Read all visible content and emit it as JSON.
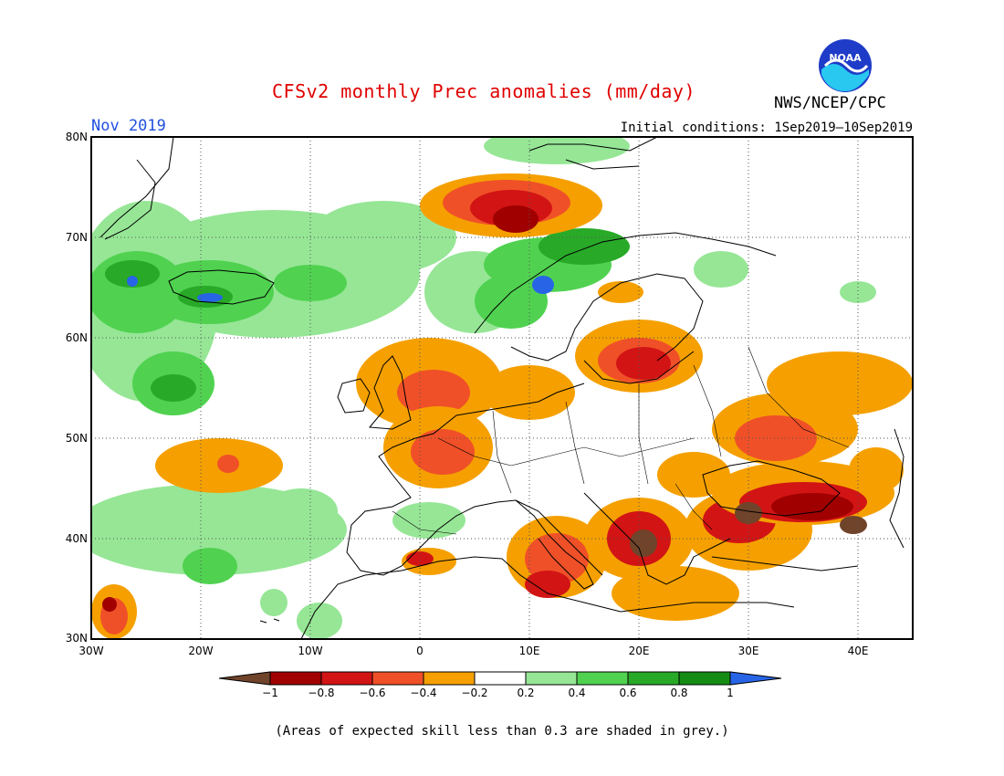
{
  "header": {
    "title": "CFSv2 monthly Prec anomalies (mm/day)",
    "month": "Nov 2019",
    "initial_conditions": "Initial conditions: 1Sep2019—10Sep2019",
    "agency": "NWS/NCEP/CPC",
    "logo_text": "NOAA"
  },
  "axes": {
    "lat_labels": [
      "80N",
      "70N",
      "60N",
      "50N",
      "40N",
      "30N"
    ],
    "lon_labels": [
      "30W",
      "20W",
      "10W",
      "0",
      "10E",
      "20E",
      "30E",
      "40E"
    ]
  },
  "colorbar": {
    "labels": [
      "−1",
      "−0.8",
      "−0.6",
      "−0.4",
      "−0.2",
      "0.2",
      "0.4",
      "0.6",
      "0.8",
      "1"
    ],
    "colors": [
      "#70442a",
      "#a00000",
      "#d21414",
      "#f05028",
      "#f5a000",
      "#ffffff",
      "#96e696",
      "#50d250",
      "#28aa28",
      "#148c14",
      "#2864e6"
    ]
  },
  "footnote": "(Areas of expected skill less than 0.3 are shaded in grey.)"
}
